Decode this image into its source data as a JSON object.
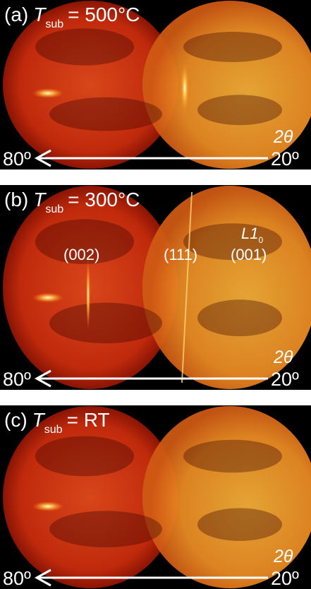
{
  "panels": [
    {
      "label": "(a)",
      "symbol": "T",
      "subscript": "sub",
      "condition": "= 500°C",
      "angle_left": "80º",
      "angle_right": "20º",
      "axis": "2θ"
    },
    {
      "label": "(b)",
      "symbol": "T",
      "subscript": "sub",
      "condition": "= 300°C",
      "angle_left": "80º",
      "angle_right": "20º",
      "axis": "2θ",
      "peaks": [
        "(002)",
        "(111)",
        "(001)"
      ],
      "phase": "L1",
      "phase_subscript": "0"
    },
    {
      "label": "(c)",
      "symbol": "T",
      "subscript": "sub",
      "condition": "= RT",
      "angle_left": "80º",
      "angle_right": "20º",
      "axis": "2θ"
    }
  ]
}
